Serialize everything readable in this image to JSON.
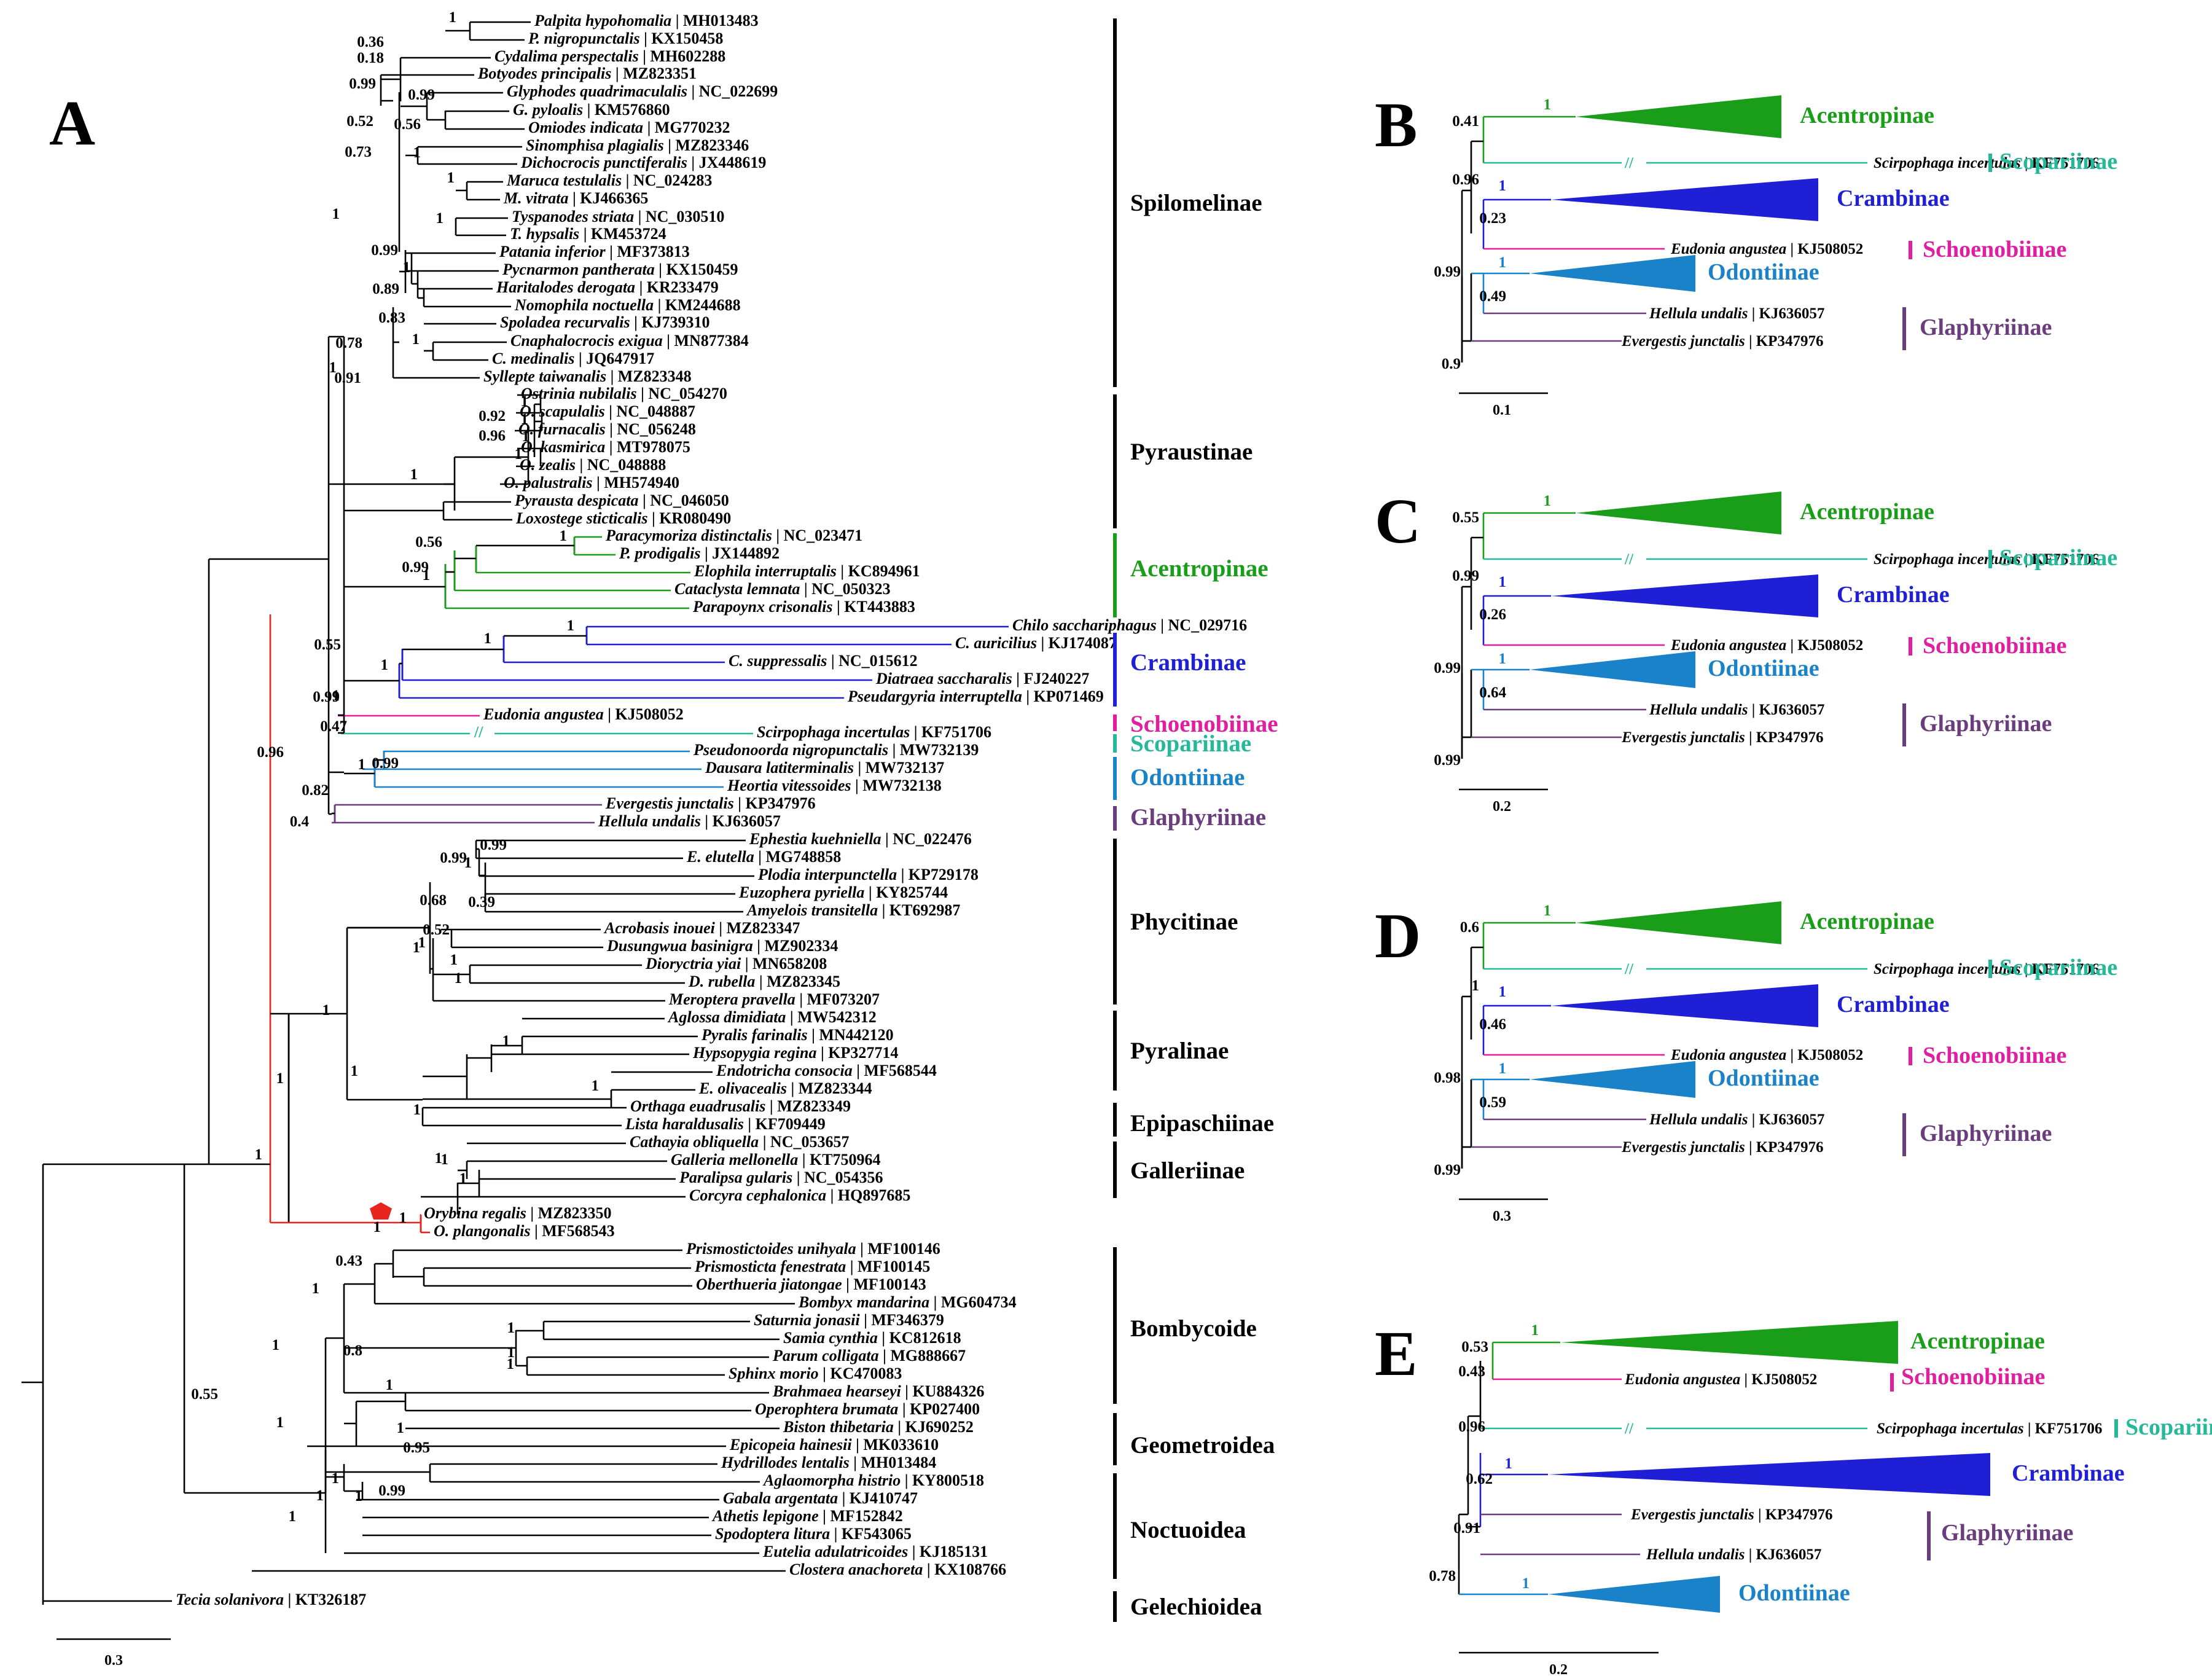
{
  "panels": [
    "A",
    "B",
    "C",
    "D",
    "E"
  ],
  "panel_a": {
    "scale_label": "0.3",
    "groups": [
      {
        "name": "Spilomelinae",
        "color": "#000000"
      },
      {
        "name": "Pyraustinae",
        "color": "#000000"
      },
      {
        "name": "Acentropinae",
        "color": "#1a9e1a"
      },
      {
        "name": "Crambinae",
        "color": "#1f1fd6"
      },
      {
        "name": "Schoenobiinae",
        "color": "#e01e9f"
      },
      {
        "name": "Scopariinae",
        "color": "#25b99a"
      },
      {
        "name": "Odontiinae",
        "color": "#1a82c8"
      },
      {
        "name": "Glaphyriinae",
        "color": "#6a3d7e"
      },
      {
        "name": "Phycitinae",
        "color": "#000000"
      },
      {
        "name": "Pyralinae",
        "color": "#000000"
      },
      {
        "name": "Epipaschiinae",
        "color": "#000000"
      },
      {
        "name": "Galleriinae",
        "color": "#000000"
      },
      {
        "name": "Bombycoide",
        "color": "#000000"
      },
      {
        "name": "Geometroidea",
        "color": "#000000"
      },
      {
        "name": "Noctuoidea",
        "color": "#000000"
      },
      {
        "name": "Gelechioidea",
        "color": "#000000"
      }
    ],
    "taxa": [
      {
        "species": "Palpita hypohomalia",
        "acc": "MH013483"
      },
      {
        "species": "P. nigropunctalis",
        "acc": "KX150458"
      },
      {
        "species": "Cydalima perspectalis",
        "acc": "MH602288"
      },
      {
        "species": "Botyodes principalis",
        "acc": "MZ823351"
      },
      {
        "species": "Glyphodes quadrimaculalis",
        "acc": "NC_022699"
      },
      {
        "species": "G. pyloalis",
        "acc": "KM576860"
      },
      {
        "species": "Omiodes indicata",
        "acc": "MG770232"
      },
      {
        "species": "Sinomphisa plagialis",
        "acc": "MZ823346"
      },
      {
        "species": "Dichocrocis punctiferalis",
        "acc": "JX448619"
      },
      {
        "species": "Maruca testulalis",
        "acc": "NC_024283"
      },
      {
        "species": "M. vitrata",
        "acc": "KJ466365"
      },
      {
        "species": "Tyspanodes striata",
        "acc": "NC_030510"
      },
      {
        "species": "T. hypsalis",
        "acc": "KM453724"
      },
      {
        "species": "Patania inferior",
        "acc": "MF373813"
      },
      {
        "species": "Pycnarmon pantherata",
        "acc": "KX150459"
      },
      {
        "species": "Haritalodes derogata",
        "acc": "KR233479"
      },
      {
        "species": "Nomophila noctuella",
        "acc": "KM244688"
      },
      {
        "species": "Spoladea recurvalis",
        "acc": "KJ739310"
      },
      {
        "species": "Cnaphalocrocis exigua",
        "acc": "MN877384"
      },
      {
        "species": "C. medinalis",
        "acc": "JQ647917"
      },
      {
        "species": "Syllepte taiwanalis",
        "acc": "MZ823348"
      },
      {
        "species": "Ostrinia nubilalis",
        "acc": "NC_054270"
      },
      {
        "species": "O. scapulalis",
        "acc": "NC_048887"
      },
      {
        "species": "O. furnacalis",
        "acc": "NC_056248"
      },
      {
        "species": "O. kasmirica",
        "acc": "MT978075"
      },
      {
        "species": "O. zealis",
        "acc": "NC_048888"
      },
      {
        "species": "O. palustralis",
        "acc": "MH574940"
      },
      {
        "species": "Pyrausta despicata",
        "acc": "NC_046050"
      },
      {
        "species": "Loxostege sticticalis",
        "acc": "KR080490"
      },
      {
        "species": "Paracymoriza distinctalis",
        "acc": "NC_023471"
      },
      {
        "species": "P. prodigalis",
        "acc": "JX144892"
      },
      {
        "species": "Elophila interruptalis",
        "acc": "KC894961"
      },
      {
        "species": "Cataclysta lemnata",
        "acc": "NC_050323"
      },
      {
        "species": "Parapoynx crisonalis",
        "acc": "KT443883"
      },
      {
        "species": "Chilo sacchariphagus",
        "acc": "NC_029716"
      },
      {
        "species": "C. auricilius",
        "acc": "KJ174087"
      },
      {
        "species": "C. suppressalis",
        "acc": "NC_015612"
      },
      {
        "species": "Diatraea saccharalis",
        "acc": "FJ240227"
      },
      {
        "species": "Pseudargyria interruptella",
        "acc": "KP071469"
      },
      {
        "species": "Eudonia angustea",
        "acc": "KJ508052"
      },
      {
        "species": "Scirpophaga incertulas",
        "acc": "KF751706"
      },
      {
        "species": "Pseudonoorda nigropunctalis",
        "acc": "MW732139"
      },
      {
        "species": "Dausara latiterminalis",
        "acc": "MW732137"
      },
      {
        "species": "Heortia vitessoides",
        "acc": "MW732138"
      },
      {
        "species": "Evergestis junctalis",
        "acc": "KP347976"
      },
      {
        "species": "Hellula undalis",
        "acc": "KJ636057"
      },
      {
        "species": "Ephestia kuehniella",
        "acc": "NC_022476"
      },
      {
        "species": "E. elutella",
        "acc": "MG748858"
      },
      {
        "species": "Plodia interpunctella",
        "acc": "KP729178"
      },
      {
        "species": "Euzophera pyriella",
        "acc": "KY825744"
      },
      {
        "species": "Amyelois transitella",
        "acc": "KT692987"
      },
      {
        "species": "Acrobasis inouei",
        "acc": "MZ823347"
      },
      {
        "species": "Dusungwua basinigra",
        "acc": "MZ902334"
      },
      {
        "species": "Dioryctria yiai",
        "acc": "MN658208"
      },
      {
        "species": "D. rubella",
        "acc": "MZ823345"
      },
      {
        "species": "Meroptera pravella",
        "acc": "MF073207"
      },
      {
        "species": "Aglossa dimidiata",
        "acc": "MW542312"
      },
      {
        "species": "Pyralis farinalis",
        "acc": "MN442120"
      },
      {
        "species": "Hypsopygia regina",
        "acc": "KP327714"
      },
      {
        "species": "Endotricha consocia",
        "acc": "MF568544"
      },
      {
        "species": "E. olivacealis",
        "acc": "MZ823344"
      },
      {
        "species": "Orthaga euadrusalis",
        "acc": "MZ823349"
      },
      {
        "species": "Lista haraldusalis",
        "acc": "KF709449"
      },
      {
        "species": "Cathayia obliquella",
        "acc": "NC_053657"
      },
      {
        "species": "Galleria mellonella",
        "acc": "KT750964"
      },
      {
        "species": "Paralipsa gularis",
        "acc": "NC_054356"
      },
      {
        "species": "Corcyra cephalonica",
        "acc": "HQ897685"
      },
      {
        "species": "Orybina regalis",
        "acc": "MZ823350"
      },
      {
        "species": "O. plangonalis",
        "acc": "MF568543"
      },
      {
        "species": "Prismostictoides unihyala",
        "acc": "MF100146"
      },
      {
        "species": "Prismosticta fenestrata",
        "acc": "MF100145"
      },
      {
        "species": "Oberthueria jiatongae",
        "acc": "MF100143"
      },
      {
        "species": "Bombyx mandarina",
        "acc": "MG604734"
      },
      {
        "species": "Saturnia jonasii",
        "acc": "MF346379"
      },
      {
        "species": "Samia cynthia",
        "acc": "KC812618"
      },
      {
        "species": "Parum colligata",
        "acc": "MG888667"
      },
      {
        "species": "Sphinx morio",
        "acc": "KC470083"
      },
      {
        "species": "Brahmaea hearseyi",
        "acc": "KU884326"
      },
      {
        "species": "Operophtera brumata",
        "acc": "KP027400"
      },
      {
        "species": "Biston thibetaria",
        "acc": "KJ690252"
      },
      {
        "species": "Epicopeia hainesii",
        "acc": "MK033610"
      },
      {
        "species": "Hydrillodes lentalis",
        "acc": "MH013484"
      },
      {
        "species": "Aglaomorpha histrio",
        "acc": "KY800518"
      },
      {
        "species": "Gabala argentata",
        "acc": "KJ410747"
      },
      {
        "species": "Athetis lepigone",
        "acc": "MF152842"
      },
      {
        "species": "Spodoptera litura",
        "acc": "KF543065"
      },
      {
        "species": "Eutelia adulatricoides",
        "acc": "KJ185131"
      },
      {
        "species": "Clostera anachoreta",
        "acc": "KX108766"
      },
      {
        "species": "Tecia solanivora",
        "acc": "KT326187"
      }
    ],
    "support_values": [
      "1",
      "0.36",
      "0.18",
      "0.99",
      "0.52",
      "0.99",
      "0.56",
      "0.73",
      "1",
      "1",
      "1",
      "1",
      "0.99",
      "1",
      "0.89",
      "0.83",
      "0.78",
      "1",
      "0.91",
      "1",
      "0.92",
      "0.96",
      "1",
      "1",
      "1",
      "1",
      "1",
      "0.56",
      "0.99",
      "1",
      "1",
      "0.55",
      "1",
      "1",
      "1",
      "1",
      "0.99",
      "0.47",
      "0.96",
      "1",
      "0.99",
      "0.82",
      "0.4",
      "0.99",
      "0.99",
      "0.68",
      "1",
      "0.39",
      "1",
      "0.52",
      "1",
      "1",
      "1",
      "1",
      "1",
      "1",
      "1",
      "1",
      "1",
      "1",
      "1",
      "1",
      "1",
      "1",
      "1",
      "0.43",
      "1",
      "1",
      "0.8",
      "1",
      "1",
      "1",
      "0.55",
      "1",
      "1",
      "1",
      "0.95",
      "1",
      "1",
      "0.99",
      "1",
      "1"
    ]
  },
  "small_panels": {
    "B": {
      "scale_label": "0.1",
      "taxa": [
        {
          "species": "Scirpophaga incertulas",
          "acc": "KF751706"
        },
        {
          "species": "Eudonia angustea",
          "acc": "KJ508052"
        },
        {
          "species": "Hellula undalis",
          "acc": "KJ636057"
        },
        {
          "species": "Evergestis junctalis",
          "acc": "KP347976"
        }
      ],
      "groups": [
        "Acentropinae",
        "Scopariinae",
        "Crambinae",
        "Schoenobiinae",
        "Odontiinae",
        "Glaphyriinae"
      ],
      "support": [
        "1",
        "0.41",
        "0.96",
        "1",
        "0.23",
        "0.99",
        "1",
        "0.49",
        "0.9"
      ]
    },
    "C": {
      "scale_label": "0.2",
      "taxa": [
        {
          "species": "Scirpophaga incertulas",
          "acc": "KF751706"
        },
        {
          "species": "Eudonia angustea",
          "acc": "KJ508052"
        },
        {
          "species": "Hellula undalis",
          "acc": "KJ636057"
        },
        {
          "species": "Evergestis junctalis",
          "acc": "KP347976"
        }
      ],
      "groups": [
        "Acentropinae",
        "Scopariinae",
        "Crambinae",
        "Schoenobiinae",
        "Odontiinae",
        "Glaphyriinae"
      ],
      "support": [
        "1",
        "0.55",
        "0.99",
        "1",
        "0.26",
        "0.99",
        "1",
        "0.64",
        "0.99"
      ]
    },
    "D": {
      "scale_label": "0.3",
      "taxa": [
        {
          "species": "Scirpophaga incertulas",
          "acc": "KF751706"
        },
        {
          "species": "Eudonia angustea",
          "acc": "KJ508052"
        },
        {
          "species": "Hellula undalis",
          "acc": "KJ636057"
        },
        {
          "species": "Evergestis junctalis",
          "acc": "KP347976"
        }
      ],
      "groups": [
        "Acentropinae",
        "Scopariinae",
        "Crambinae",
        "Schoenobiinae",
        "Odontiinae",
        "Glaphyriinae"
      ],
      "support": [
        "1",
        "0.6",
        "1",
        "1",
        "0.46",
        "0.98",
        "1",
        "0.59",
        "0.99"
      ]
    },
    "E": {
      "scale_label": "0.2",
      "taxa": [
        {
          "species": "Eudonia angustea",
          "acc": "KJ508052"
        },
        {
          "species": "Scirpophaga incertulas",
          "acc": "KF751706"
        },
        {
          "species": "Evergestis junctalis",
          "acc": "KP347976"
        },
        {
          "species": "Hellula undalis",
          "acc": "KJ636057"
        }
      ],
      "groups": [
        "Acentropinae",
        "Schoenobiinae",
        "Scopariinae",
        "Crambinae",
        "Glaphyriinae",
        "Odontiinae"
      ],
      "support": [
        "1",
        "0.53",
        "0.43",
        "0.96",
        "1",
        "0.62",
        "0.91",
        "0.78",
        "1"
      ]
    }
  },
  "colors": {
    "acentropinae": "#1a9e1a",
    "crambinae": "#1f1fd6",
    "schoenobiinae": "#e01e9f",
    "scopariinae": "#25b99a",
    "odontiinae": "#1a82c8",
    "glaphyriinae": "#6a3d7e",
    "orybina": "#e8251f"
  }
}
